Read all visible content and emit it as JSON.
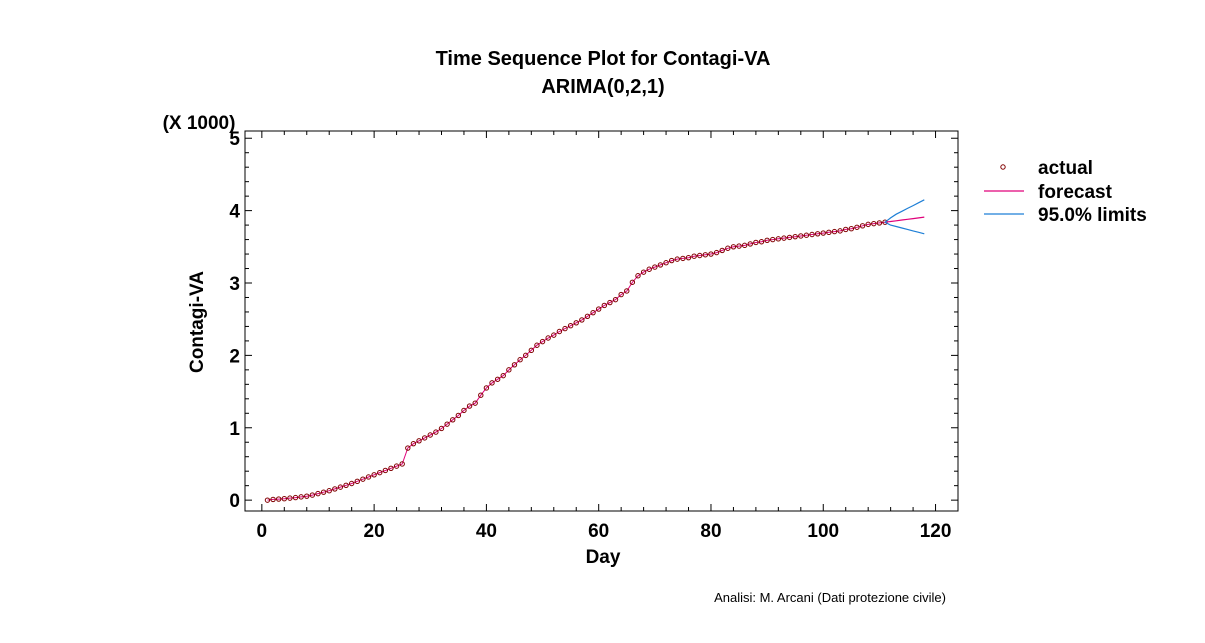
{
  "chart_data": {
    "type": "line",
    "title": "Time Sequence Plot for Contagi-VA",
    "subtitle": "ARIMA(0,2,1)",
    "xlabel": "Day",
    "ylabel": "Contagi-VA",
    "y_multiplier": "(X 1000)",
    "xlim": [
      -3,
      124
    ],
    "ylim": [
      -0.15,
      5.1
    ],
    "x_ticks": [
      0,
      20,
      40,
      60,
      80,
      100,
      120
    ],
    "y_ticks": [
      0,
      1,
      2,
      3,
      4,
      5
    ],
    "grid": false,
    "legend_position": "right",
    "series": [
      {
        "name": "actual",
        "style": "circle-markers",
        "color": "#800000",
        "x": [
          1,
          2,
          3,
          4,
          5,
          6,
          7,
          8,
          9,
          10,
          11,
          12,
          13,
          14,
          15,
          16,
          17,
          18,
          19,
          20,
          21,
          22,
          23,
          24,
          25,
          26,
          27,
          28,
          29,
          30,
          31,
          32,
          33,
          34,
          35,
          36,
          37,
          38,
          39,
          40,
          41,
          42,
          43,
          44,
          45,
          46,
          47,
          48,
          49,
          50,
          51,
          52,
          53,
          54,
          55,
          56,
          57,
          58,
          59,
          60,
          61,
          62,
          63,
          64,
          65,
          66,
          67,
          68,
          69,
          70,
          71,
          72,
          73,
          74,
          75,
          76,
          77,
          78,
          79,
          80,
          81,
          82,
          83,
          84,
          85,
          86,
          87,
          88,
          89,
          90,
          91,
          92,
          93,
          94,
          95,
          96,
          97,
          98,
          99,
          100,
          101,
          102,
          103,
          104,
          105,
          106,
          107,
          108,
          109,
          110,
          111
        ],
        "values": [
          0.0,
          0.01,
          0.015,
          0.02,
          0.028,
          0.035,
          0.045,
          0.055,
          0.07,
          0.09,
          0.11,
          0.13,
          0.155,
          0.18,
          0.205,
          0.23,
          0.26,
          0.29,
          0.32,
          0.35,
          0.38,
          0.41,
          0.44,
          0.47,
          0.5,
          0.72,
          0.78,
          0.82,
          0.86,
          0.9,
          0.94,
          0.99,
          1.05,
          1.11,
          1.17,
          1.24,
          1.3,
          1.34,
          1.45,
          1.55,
          1.62,
          1.67,
          1.72,
          1.8,
          1.87,
          1.94,
          2.0,
          2.07,
          2.14,
          2.19,
          2.24,
          2.28,
          2.33,
          2.37,
          2.41,
          2.45,
          2.49,
          2.54,
          2.59,
          2.64,
          2.69,
          2.73,
          2.77,
          2.84,
          2.89,
          3.01,
          3.1,
          3.15,
          3.19,
          3.22,
          3.25,
          3.28,
          3.31,
          3.33,
          3.34,
          3.35,
          3.37,
          3.38,
          3.39,
          3.4,
          3.42,
          3.45,
          3.48,
          3.5,
          3.51,
          3.52,
          3.54,
          3.56,
          3.57,
          3.59,
          3.6,
          3.61,
          3.62,
          3.63,
          3.64,
          3.65,
          3.66,
          3.67,
          3.68,
          3.69,
          3.7,
          3.71,
          3.72,
          3.74,
          3.75,
          3.77,
          3.79,
          3.81,
          3.82,
          3.83,
          3.84
        ]
      },
      {
        "name": "forecast",
        "style": "line",
        "color": "#e0007a",
        "x": [
          111,
          112,
          113,
          114,
          115,
          116,
          117,
          118
        ],
        "values": [
          3.84,
          3.85,
          3.86,
          3.87,
          3.88,
          3.89,
          3.9,
          3.91
        ]
      },
      {
        "name": "95.0% limits",
        "style": "line",
        "color": "#1e7fd6",
        "x": [
          111,
          112,
          113,
          114,
          115,
          116,
          117,
          118
        ],
        "upper": [
          3.84,
          3.9,
          3.95,
          3.99,
          4.03,
          4.07,
          4.11,
          4.15
        ],
        "lower": [
          3.84,
          3.8,
          3.78,
          3.76,
          3.74,
          3.72,
          3.7,
          3.68
        ]
      }
    ]
  },
  "credit": "Analisi: M. Arcani (Dati protezione civile)"
}
